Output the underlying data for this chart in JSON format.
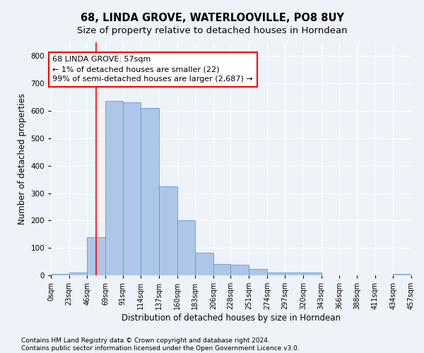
{
  "title": "68, LINDA GROVE, WATERLOOVILLE, PO8 8UY",
  "subtitle": "Size of property relative to detached houses in Horndean",
  "xlabel": "Distribution of detached houses by size in Horndean",
  "ylabel": "Number of detached properties",
  "footer_line1": "Contains HM Land Registry data © Crown copyright and database right 2024.",
  "footer_line2": "Contains public sector information licensed under the Open Government Licence v3.0.",
  "bar_edges": [
    0,
    23,
    46,
    69,
    91,
    114,
    137,
    160,
    183,
    206,
    228,
    251,
    274,
    297,
    320,
    343,
    366,
    388,
    411,
    434,
    457
  ],
  "bar_heights": [
    5,
    10,
    140,
    635,
    630,
    610,
    325,
    200,
    83,
    40,
    38,
    23,
    10,
    10,
    10,
    0,
    0,
    0,
    0,
    5
  ],
  "bar_color": "#aec6e8",
  "bar_edge_color": "#5b9bd5",
  "reference_line_x": 57,
  "reference_line_color": "red",
  "annotation_line1": "68 LINDA GROVE: 57sqm",
  "annotation_line2": "← 1% of detached houses are smaller (22)",
  "annotation_line3": "99% of semi-detached houses are larger (2,687) →",
  "annotation_box_color": "white",
  "annotation_box_edge_color": "red",
  "ylim": [
    0,
    850
  ],
  "yticks": [
    0,
    100,
    200,
    300,
    400,
    500,
    600,
    700,
    800
  ],
  "tick_labels": [
    "0sqm",
    "23sqm",
    "46sqm",
    "69sqm",
    "91sqm",
    "114sqm",
    "137sqm",
    "160sqm",
    "183sqm",
    "206sqm",
    "228sqm",
    "251sqm",
    "274sqm",
    "297sqm",
    "320sqm",
    "343sqm",
    "366sqm",
    "388sqm",
    "411sqm",
    "434sqm",
    "457sqm"
  ],
  "background_color": "#eef2f9",
  "grid_color": "#ffffff",
  "title_fontsize": 10.5,
  "subtitle_fontsize": 9.5,
  "label_fontsize": 8.5,
  "tick_fontsize": 7,
  "annotation_fontsize": 8,
  "footer_fontsize": 6.5
}
